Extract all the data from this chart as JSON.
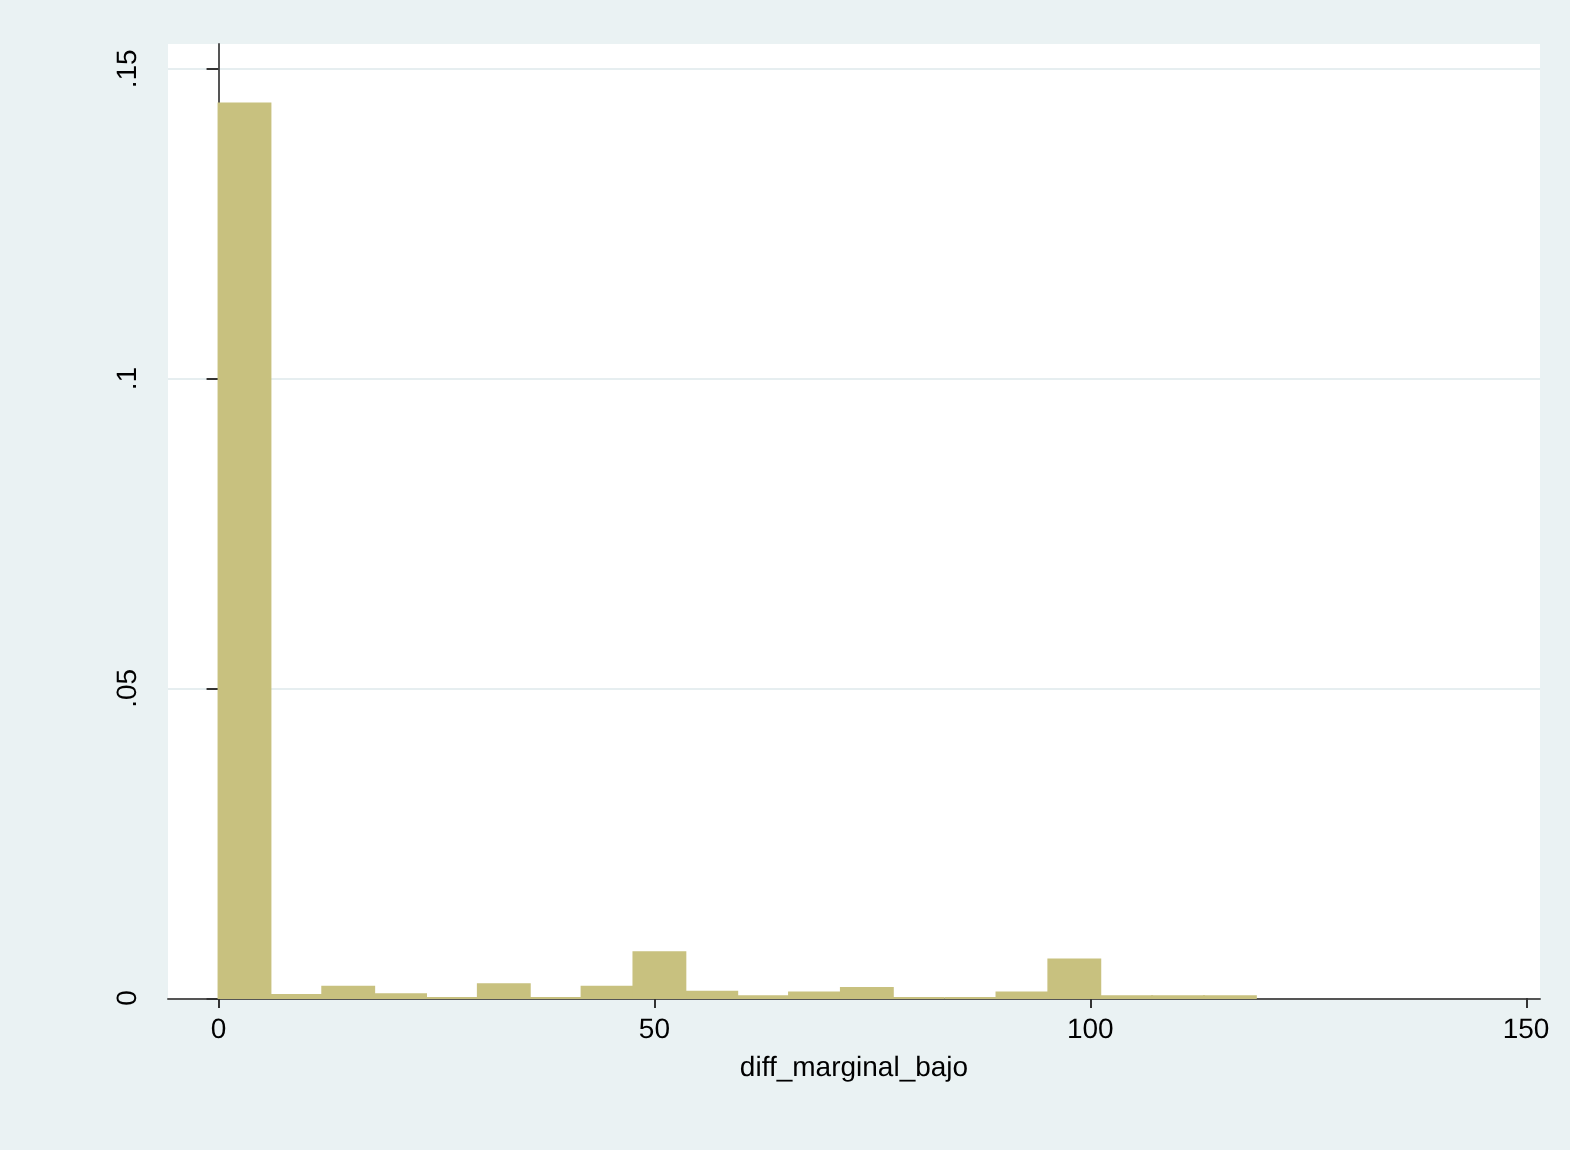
{
  "chart_data": {
    "type": "histogram",
    "xlabel": "diff_marginal_bajo",
    "bins": [
      0,
      5.95,
      11.9,
      17.85,
      23.8,
      29.75,
      35.7,
      41.65,
      47.6,
      53.55,
      59.5,
      65.45,
      71.4,
      77.35,
      83.3,
      89.25,
      95.2,
      101.15,
      107.1,
      113.05,
      119
    ],
    "values": [
      0.1444,
      0.0005,
      0.0018,
      0.0006,
      0,
      0.0022,
      0,
      0.0018,
      0.0074,
      0.001,
      0.0003,
      0.0009,
      0.0016,
      0,
      0,
      0.0009,
      0.0062,
      0.0003,
      0.0003,
      0.0003
    ],
    "color": "#c8c17f",
    "xlim": [
      -5.8,
      151.6
    ],
    "xticks": [
      0,
      50,
      100,
      150
    ],
    "ylim": [
      0,
      0.154
    ],
    "yticks": [
      0,
      {
        "value": 0.05,
        "label": ".05"
      },
      {
        "value": 0.1,
        "label": ".1"
      },
      {
        "value": 0.15,
        "label": ".15"
      }
    ],
    "grid": "y",
    "legend": false
  }
}
